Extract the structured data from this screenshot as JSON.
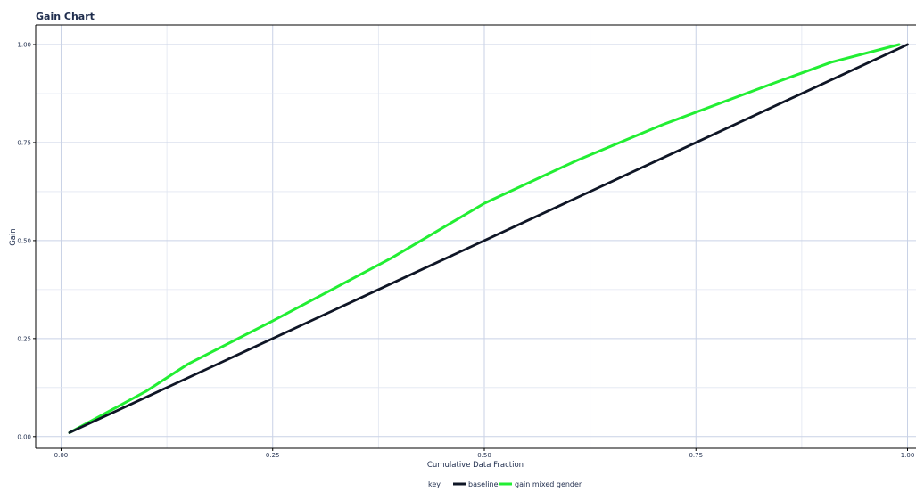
{
  "chart_data": {
    "type": "line",
    "title": "Gain Chart",
    "xlabel": "Cumulative Data Fraction",
    "ylabel": "Gain",
    "xlim": [
      -0.03,
      1.01
    ],
    "ylim": [
      -0.03,
      1.05
    ],
    "x_ticks": [
      0.0,
      0.25,
      0.5,
      0.75,
      1.0
    ],
    "x_tick_labels": [
      "0.00",
      "0.25",
      "0.50",
      "0.75",
      "1.00"
    ],
    "y_ticks": [
      0.0,
      0.25,
      0.5,
      0.75,
      1.0
    ],
    "y_tick_labels": [
      "0.00",
      "0.25",
      "0.50",
      "0.75",
      "1.00"
    ],
    "grid": true,
    "legend": {
      "placement": "bottom-center",
      "title": "key",
      "entries": [
        "baseline",
        "gain mixed gender"
      ]
    },
    "series": [
      {
        "name": "baseline",
        "color": "#0f1626",
        "x": [
          0.01,
          1.0
        ],
        "y": [
          0.01,
          1.0
        ]
      },
      {
        "name": "gain mixed gender",
        "color": "#22ee33",
        "x": [
          0.01,
          0.1,
          0.15,
          0.25,
          0.39,
          0.5,
          0.61,
          0.71,
          0.84,
          0.91,
          0.99
        ],
        "y": [
          0.01,
          0.115,
          0.185,
          0.295,
          0.455,
          0.595,
          0.705,
          0.795,
          0.9,
          0.955,
          1.0
        ]
      }
    ]
  }
}
